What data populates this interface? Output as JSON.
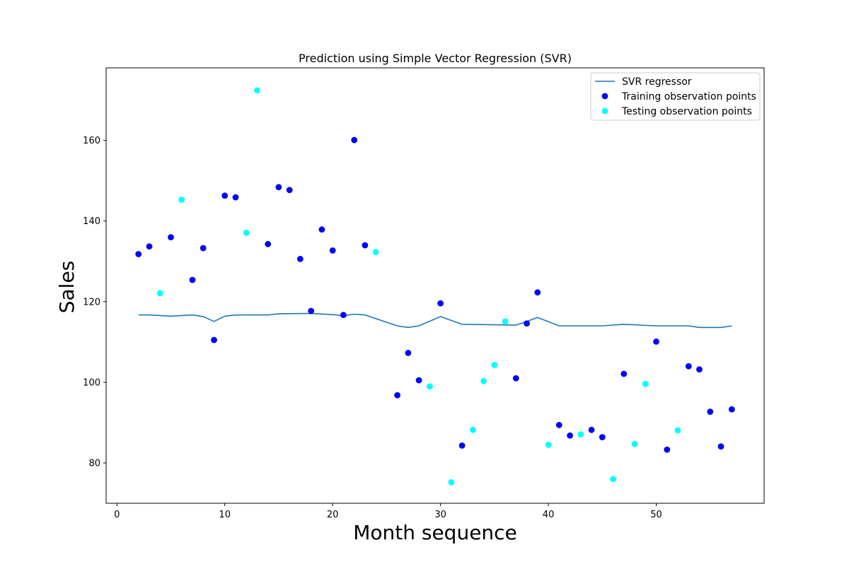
{
  "chart_data": {
    "type": "scatter",
    "title": "Prediction using Simple Vector Regression (SVR)",
    "xlabel": "Month sequence",
    "ylabel": "Sales",
    "xlim": [
      -1,
      60
    ],
    "ylim": [
      70,
      178
    ],
    "x_ticks": [
      0,
      10,
      20,
      30,
      40,
      50
    ],
    "y_ticks": [
      80,
      100,
      120,
      140,
      160
    ],
    "grid": false,
    "legend_position": "top-right",
    "series": [
      {
        "name": "SVR regressor",
        "kind": "line",
        "color": "#1f77b4",
        "points": [
          [
            2,
            116.7
          ],
          [
            3,
            116.7
          ],
          [
            5,
            116.4
          ],
          [
            7,
            116.7
          ],
          [
            8,
            116.3
          ],
          [
            9,
            115.1
          ],
          [
            10,
            116.4
          ],
          [
            11,
            116.7
          ],
          [
            14,
            116.7
          ],
          [
            15,
            117.0
          ],
          [
            18,
            117.1
          ],
          [
            20,
            116.8
          ],
          [
            21,
            116.5
          ],
          [
            22,
            116.9
          ],
          [
            23,
            116.7
          ],
          [
            26,
            114.0
          ],
          [
            27,
            113.6
          ],
          [
            28,
            114.0
          ],
          [
            30,
            116.3
          ],
          [
            32,
            114.4
          ],
          [
            37,
            114.2
          ],
          [
            38,
            115.1
          ],
          [
            39,
            116.1
          ],
          [
            41,
            114.0
          ],
          [
            45,
            114.0
          ],
          [
            47,
            114.4
          ],
          [
            50,
            114.0
          ],
          [
            53,
            114.0
          ],
          [
            54,
            113.6
          ],
          [
            56,
            113.6
          ],
          [
            57,
            114.0
          ]
        ]
      },
      {
        "name": "Training observation points",
        "kind": "scatter",
        "color": "#0000ff",
        "points": [
          [
            2,
            131.8
          ],
          [
            3,
            133.7
          ],
          [
            5,
            136.0
          ],
          [
            7,
            125.4
          ],
          [
            8,
            133.3
          ],
          [
            9,
            110.5
          ],
          [
            10,
            146.3
          ],
          [
            11,
            145.9
          ],
          [
            14,
            134.3
          ],
          [
            15,
            148.4
          ],
          [
            16,
            147.7
          ],
          [
            17,
            130.6
          ],
          [
            18,
            117.7
          ],
          [
            19,
            137.9
          ],
          [
            20,
            132.7
          ],
          [
            21,
            116.7
          ],
          [
            22,
            160.1
          ],
          [
            23,
            134.0
          ],
          [
            26,
            96.8
          ],
          [
            27,
            107.3
          ],
          [
            28,
            100.5
          ],
          [
            30,
            119.6
          ],
          [
            32,
            84.3
          ],
          [
            37,
            101.0
          ],
          [
            38,
            114.6
          ],
          [
            39,
            122.3
          ],
          [
            41,
            89.4
          ],
          [
            42,
            86.8
          ],
          [
            44,
            88.2
          ],
          [
            45,
            86.4
          ],
          [
            47,
            102.1
          ],
          [
            50,
            110.1
          ],
          [
            51,
            83.3
          ],
          [
            53,
            104.0
          ],
          [
            54,
            103.2
          ],
          [
            55,
            92.7
          ],
          [
            56,
            84.1
          ],
          [
            57,
            93.3
          ]
        ]
      },
      {
        "name": "Testing observation points",
        "kind": "scatter",
        "color": "#00ffff",
        "points": [
          [
            4,
            122.1
          ],
          [
            6,
            145.3
          ],
          [
            12,
            137.1
          ],
          [
            13,
            172.4
          ],
          [
            24,
            132.3
          ],
          [
            29,
            99.0
          ],
          [
            31,
            75.2
          ],
          [
            33,
            88.2
          ],
          [
            34,
            100.3
          ],
          [
            35,
            104.3
          ],
          [
            36,
            115.1
          ],
          [
            40,
            84.5
          ],
          [
            43,
            87.1
          ],
          [
            46,
            76.0
          ],
          [
            48,
            84.7
          ],
          [
            49,
            99.6
          ],
          [
            52,
            88.1
          ]
        ]
      }
    ]
  }
}
